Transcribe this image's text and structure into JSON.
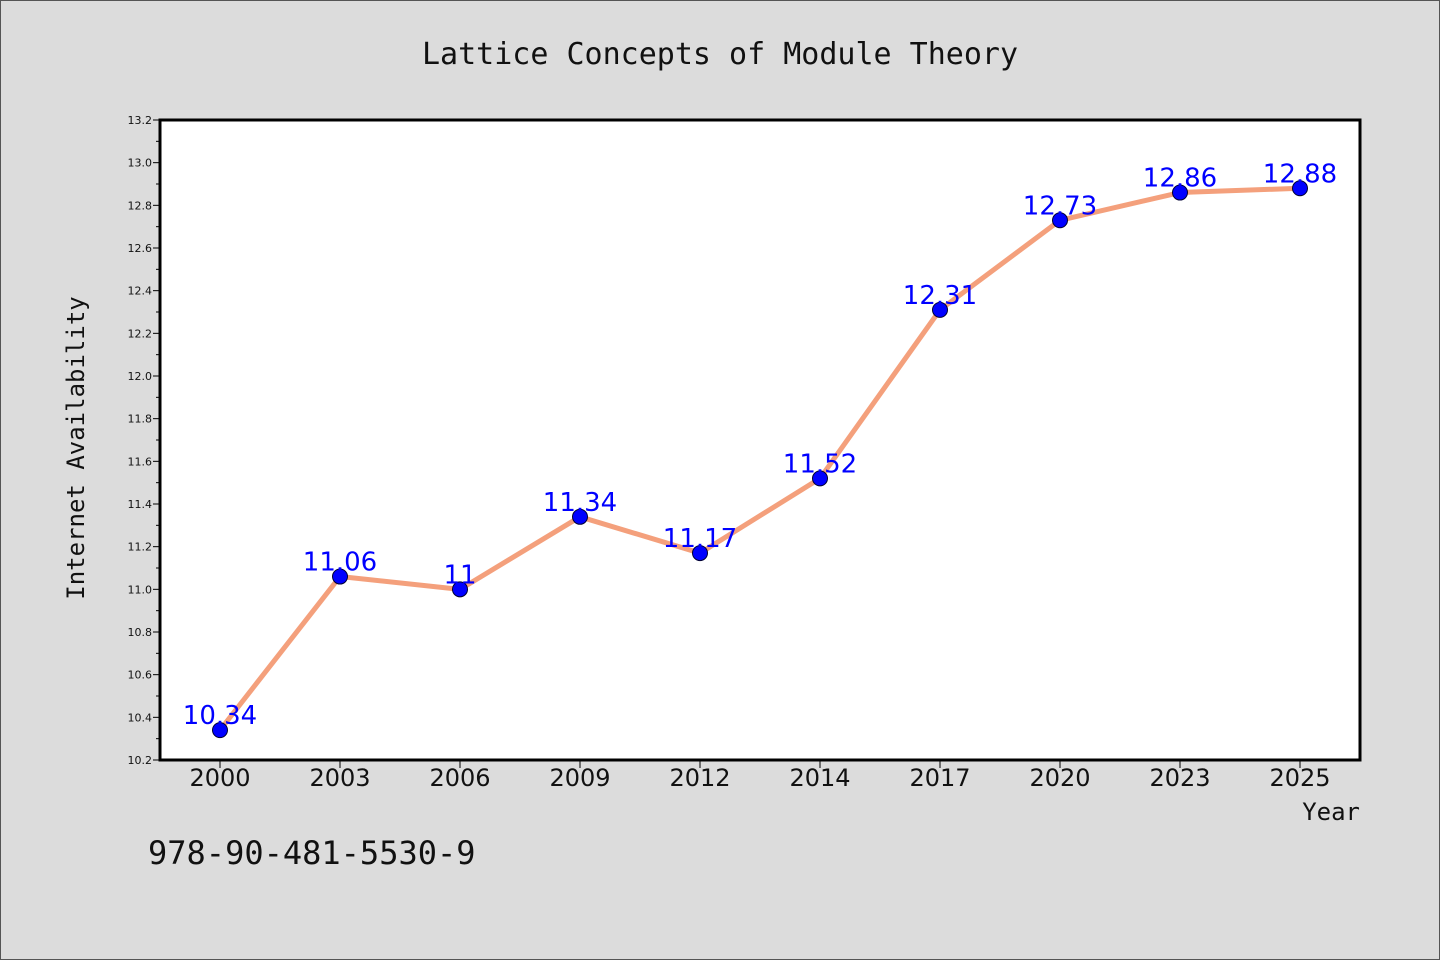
{
  "chart_data": {
    "type": "line",
    "title": "Lattice Concepts of Module Theory",
    "xlabel": "Year",
    "ylabel": "Internet Availability",
    "categories": [
      "2000",
      "2003",
      "2006",
      "2009",
      "2012",
      "2014",
      "2017",
      "2020",
      "2023",
      "2025"
    ],
    "values": [
      10.34,
      11.06,
      11,
      11.34,
      11.17,
      11.52,
      12.31,
      12.73,
      12.86,
      12.88
    ],
    "data_labels": [
      "10.34",
      "11.06",
      "11",
      "11.34",
      "11.17",
      "11.52",
      "12.31",
      "12.73",
      "12.86",
      "12.88"
    ],
    "ylim": [
      10.2,
      13.2
    ],
    "yticks": [
      "10.2",
      "10.4",
      "10.6",
      "10.8",
      "11.0",
      "11.2",
      "11.4",
      "11.6",
      "11.8",
      "12.0",
      "12.2",
      "12.4",
      "12.6",
      "12.8",
      "13.0",
      "13.2"
    ],
    "grid": false,
    "line_color": "#f4a07c",
    "marker_color": "#0000ff",
    "label_color": "#0000ff"
  },
  "footer": {
    "isbn": "978-90-481-5530-9"
  }
}
